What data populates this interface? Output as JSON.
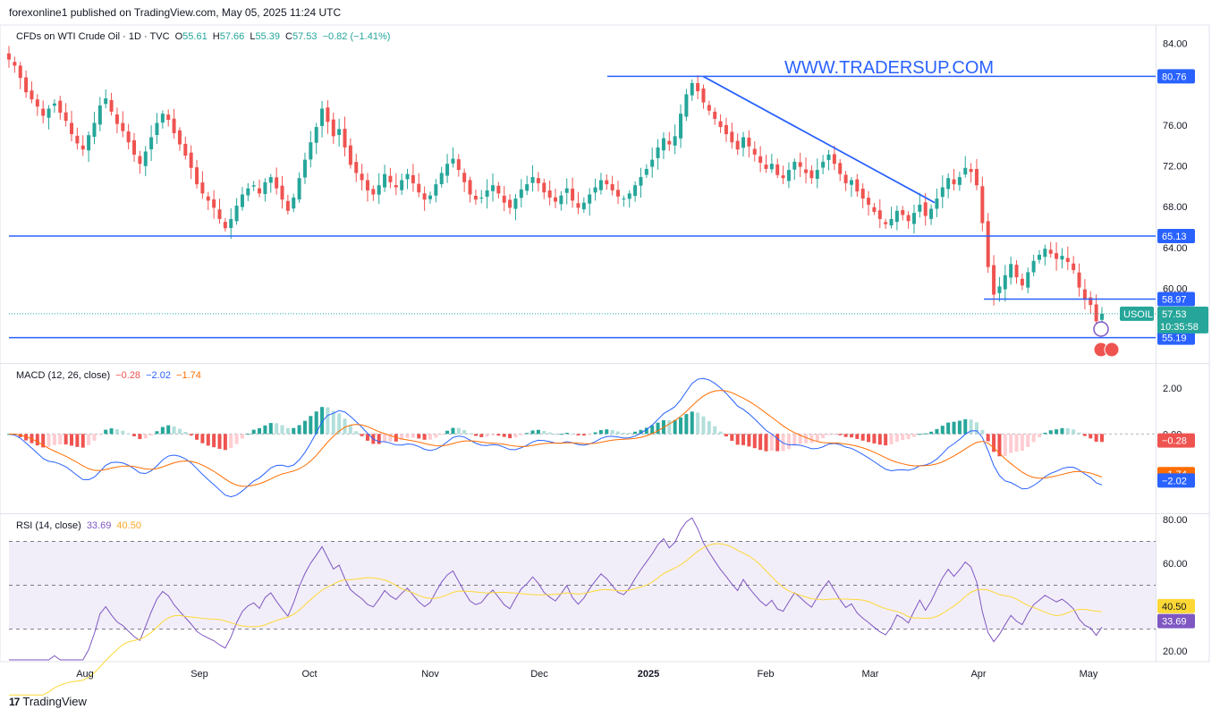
{
  "header": {
    "published_line": "forexonline1 published on TradingView.com, May 05, 2025 11:24 UTC"
  },
  "legend": {
    "symbol": "CFDs on WTI Crude Oil · 1D · TVC",
    "o_label": "O",
    "o_value": "55.61",
    "h_label": "H",
    "h_value": "57.66",
    "l_label": "L",
    "l_value": "55.39",
    "c_label": "C",
    "c_value": "57.53",
    "change": "−0.82 (−1.41%)",
    "macd_name": "MACD (12, 26, close)",
    "macd_v1": "−0.28",
    "macd_v2": "−2.02",
    "macd_v3": "−1.74",
    "rsi_name": "RSI (14, close)",
    "rsi_v1": "33.69",
    "rsi_v2": "40.50"
  },
  "watermark": "WWW.TRADERSUP.COM",
  "footer": {
    "brand": "TradingView"
  },
  "colors": {
    "up": "#26a69a",
    "down": "#ef5350",
    "line_blue": "#2962ff",
    "orange": "#ff6d00",
    "macd_blue": "#2962ff",
    "rsi_purple": "#7e57c2",
    "rsi_ma": "#fdd835",
    "tag_dark": "#26a69a"
  },
  "chart_data": [
    {
      "type": "candlestick",
      "name": "price",
      "x_labels": [
        "Aug",
        "Sep",
        "Oct",
        "Nov",
        "Dec",
        "2025",
        "Feb",
        "Mar",
        "Apr",
        "May"
      ],
      "y_ticks": [
        "84.00",
        "76.00",
        "72.00",
        "68.00",
        "64.00",
        "60.00"
      ],
      "ylim": [
        52.8,
        85.6
      ],
      "horizontal_levels": [
        80.76,
        65.13,
        58.97,
        55.19
      ],
      "level_labels": [
        "80.76",
        "65.13",
        "58.97",
        "55.19"
      ],
      "trendline": [
        {
          "date": "2025-01-15",
          "price": 80.76
        },
        {
          "date": "2025-03-20",
          "price": 68.4
        }
      ],
      "last_price": "57.53",
      "countdown": "10:35:58",
      "symbol_tag": "USOIL",
      "approx_closes": [
        82.4,
        81.8,
        80.6,
        79.2,
        78.5,
        77.8,
        76.9,
        77.6,
        78.1,
        77.2,
        76.4,
        75.1,
        74.2,
        73.6,
        75.0,
        76.2,
        77.9,
        78.6,
        77.3,
        76.1,
        75.4,
        74.3,
        73.1,
        72.2,
        73.4,
        74.8,
        76.2,
        77.1,
        76.5,
        75.2,
        74.1,
        73.0,
        71.8,
        70.2,
        69.3,
        68.6,
        67.9,
        66.8,
        65.9,
        66.8,
        68.1,
        69.2,
        69.8,
        70.1,
        69.3,
        70.4,
        70.9,
        69.8,
        68.7,
        67.6,
        68.9,
        70.8,
        72.6,
        74.3,
        75.8,
        77.6,
        76.3,
        74.9,
        75.6,
        73.8,
        72.1,
        71.3,
        70.6,
        69.6,
        69.2,
        70.1,
        71.2,
        70.4,
        69.9,
        70.6,
        71.2,
        70.3,
        69.4,
        68.7,
        69.1,
        70.2,
        71.3,
        72.2,
        72.7,
        71.6,
        70.4,
        69.2,
        68.7,
        68.9,
        69.6,
        70.1,
        69.3,
        68.4,
        67.9,
        68.8,
        69.7,
        70.2,
        70.9,
        70.3,
        69.4,
        68.9,
        68.5,
        69.1,
        69.8,
        68.6,
        67.9,
        68.4,
        69.2,
        69.9,
        70.6,
        70.2,
        69.6,
        69.0,
        68.8,
        69.3,
        70.1,
        70.9,
        71.7,
        72.6,
        73.8,
        74.7,
        74.1,
        74.9,
        77.1,
        79.0,
        80.1,
        79.3,
        78.2,
        77.4,
        76.6,
        75.8,
        75.1,
        74.3,
        73.6,
        74.8,
        73.9,
        73.1,
        72.3,
        71.7,
        72.2,
        71.1,
        70.8,
        71.6,
        72.4,
        71.9,
        71.3,
        70.8,
        71.6,
        72.4,
        73.1,
        72.2,
        71.2,
        70.3,
        70.6,
        69.5,
        68.8,
        68.2,
        67.5,
        66.8,
        66.3,
        66.8,
        67.6,
        67.2,
        66.6,
        67.4,
        68.2,
        67.1,
        67.8,
        68.8,
        69.9,
        70.8,
        70.2,
        70.9,
        71.8,
        71.4,
        70.1,
        66.4,
        62.1,
        59.4,
        60.2,
        61.3,
        62.4,
        61.1,
        60.3,
        61.6,
        62.7,
        63.3,
        63.9,
        63.4,
        62.9,
        63.2,
        62.6,
        61.8,
        60.1,
        58.9,
        58.4,
        56.8,
        57.53
      ]
    },
    {
      "type": "macd",
      "y_ticks": [
        "2.00",
        "0.00"
      ],
      "ylim": [
        -3.4,
        3.0
      ],
      "series": [
        {
          "name": "MACD",
          "last": -2.02
        },
        {
          "name": "Signal",
          "last": -1.74
        },
        {
          "name": "Histogram",
          "last": -0.28
        }
      ]
    },
    {
      "type": "rsi",
      "y_ticks": [
        "80.00",
        "60.00",
        "20.00"
      ],
      "ylim": [
        16,
        82
      ],
      "bands": [
        70,
        50,
        30
      ],
      "series": [
        {
          "name": "RSI",
          "last": 33.69
        },
        {
          "name": "RSI MA",
          "last": 40.5
        }
      ]
    }
  ]
}
